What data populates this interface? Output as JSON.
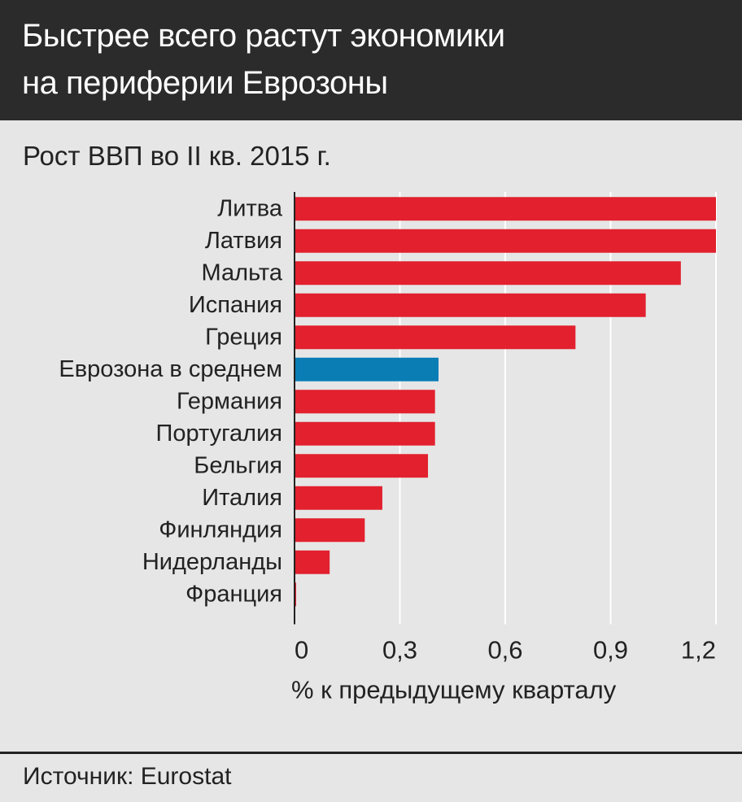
{
  "header": {
    "title_line1": "Быстрее всего растут экономики",
    "title_line2": "на периферии Еврозоны"
  },
  "subtitle": "Рост ВВП во II кв. 2015 г.",
  "source": "Источник: Eurostat",
  "colors": {
    "bar": "#e2202e",
    "highlight": "#0a7db5",
    "header_bg": "#2b2b2b",
    "background": "#e6e6e6",
    "grid": "#ffffff"
  },
  "chart_data": {
    "type": "bar",
    "orientation": "horizontal",
    "categories": [
      "Литва",
      "Латвия",
      "Мальта",
      "Испания",
      "Греция",
      "Еврозона в среднем",
      "Германия",
      "Португалия",
      "Бельгия",
      "Италия",
      "Финляндия",
      "Нидерланды",
      "Франция"
    ],
    "values": [
      1.2,
      1.2,
      1.1,
      1.0,
      0.8,
      0.41,
      0.4,
      0.4,
      0.38,
      0.25,
      0.2,
      0.1,
      0.0
    ],
    "highlight_category": "Еврозона в среднем",
    "xlim": [
      0,
      1.2
    ],
    "xticks": [
      0,
      0.3,
      0.6,
      0.9,
      1.2
    ],
    "xtick_labels": [
      "0",
      "0,3",
      "0,6",
      "0,9",
      "1,2"
    ],
    "xlabel": "% к предыдущему кварталу",
    "grid": true
  }
}
